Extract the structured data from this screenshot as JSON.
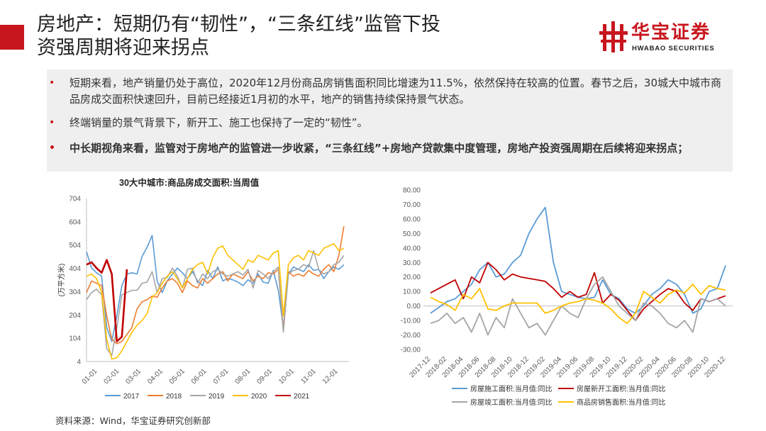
{
  "header": {
    "title_line1": "房地产：短期仍有“韧性”，“三条红线”监管下投",
    "title_line2": "资强周期将迎来拐点",
    "logo_cn": "华宝证券",
    "logo_en": "HWABAO SECURITIES",
    "accent_color": "#c8161e"
  },
  "bullets": [
    {
      "text": "短期来看，地产销量仍处于高位，2020年12月份商品房销售面积同比增速为11.5%，依然保持在较高的位置。春节之后，30城大中城市商品房成交面积快速回升，目前已经接近1月初的水平，地产的销售持续保持景气状态。",
      "bold": false
    },
    {
      "text": "终端销量的景气背景下，新开工、施工也保持了一定的“韧性”。",
      "bold": false
    },
    {
      "text": "中长期视角来看，监管对于房地产的监管进一步收紧，“三条红线”+房地产贷款集中度管理，房地产投资强周期在后续将迎来拐点；",
      "bold": true
    }
  ],
  "source": "资料来源：Wind，华宝证券研究创新部",
  "chart_data": [
    {
      "type": "line",
      "title": "30大中城市:商品房成交面积:当周值",
      "ylabel": "(万平方米)",
      "ylim": [
        4,
        704
      ],
      "yticks": [
        4,
        104,
        204,
        304,
        404,
        504,
        604,
        704
      ],
      "xticks": [
        "01-01",
        "02-01",
        "03-01",
        "04-01",
        "05-01",
        "06-01",
        "07-01",
        "08-01",
        "09-01",
        "10-01",
        "11-01",
        "12-01"
      ],
      "x_unit": "week of year (1-53)",
      "legend_position": "bottom",
      "series": [
        {
          "name": "2017",
          "color": "#5b9bd5",
          "x": [
            1,
            2,
            3,
            4,
            5,
            6,
            7,
            8,
            9,
            10,
            11,
            12,
            13,
            14,
            15,
            16,
            17,
            18,
            19,
            20,
            21,
            22,
            23,
            24,
            25,
            26,
            27,
            28,
            29,
            30,
            31,
            32,
            33,
            34,
            35,
            36,
            37,
            38,
            39,
            40,
            41,
            42,
            43,
            44,
            45,
            46,
            47,
            48,
            49,
            50,
            51,
            52
          ],
          "values": [
            475,
            405,
            385,
            370,
            150,
            90,
            200,
            330,
            380,
            385,
            380,
            455,
            495,
            545,
            350,
            300,
            350,
            380,
            405,
            385,
            360,
            390,
            350,
            330,
            395,
            360,
            410,
            350,
            360,
            355,
            345,
            330,
            355,
            340,
            380,
            345,
            340,
            395,
            310,
            150,
            380,
            410,
            400,
            390,
            420,
            395,
            400,
            360,
            390,
            410,
            400,
            420
          ]
        },
        {
          "name": "2018",
          "color": "#ed7d31",
          "x": [
            1,
            2,
            3,
            4,
            5,
            6,
            7,
            8,
            9,
            10,
            11,
            12,
            13,
            14,
            15,
            16,
            17,
            18,
            19,
            20,
            21,
            22,
            23,
            24,
            25,
            26,
            27,
            28,
            29,
            30,
            31,
            32,
            33,
            34,
            35,
            36,
            37,
            38,
            39,
            40,
            41,
            42,
            43,
            44,
            45,
            46,
            47,
            48,
            49,
            50,
            51,
            52
          ],
          "values": [
            300,
            350,
            340,
            330,
            200,
            100,
            80,
            90,
            120,
            150,
            230,
            260,
            270,
            285,
            280,
            320,
            350,
            360,
            340,
            300,
            350,
            330,
            320,
            360,
            340,
            360,
            380,
            390,
            350,
            380,
            370,
            360,
            390,
            350,
            370,
            360,
            385,
            380,
            400,
            140,
            390,
            370,
            380,
            370,
            395,
            380,
            370,
            400,
            420,
            390,
            460,
            585
          ]
        },
        {
          "name": "2019",
          "color": "#a5a5a5",
          "x": [
            1,
            2,
            3,
            4,
            5,
            6,
            7,
            8,
            9,
            10,
            11,
            12,
            13,
            14,
            15,
            16,
            17,
            18,
            19,
            20,
            21,
            22,
            23,
            24,
            25,
            26,
            27,
            28,
            29,
            30,
            31,
            32,
            33,
            34,
            35,
            36,
            37,
            38,
            39,
            40,
            41,
            42,
            43,
            44,
            45,
            46,
            47,
            48,
            49,
            50,
            51,
            52
          ],
          "values": [
            270,
            300,
            315,
            290,
            60,
            30,
            150,
            290,
            300,
            310,
            310,
            340,
            345,
            390,
            300,
            360,
            365,
            405,
            370,
            320,
            400,
            405,
            340,
            380,
            360,
            390,
            400,
            380,
            370,
            380,
            390,
            375,
            400,
            320,
            395,
            380,
            360,
            390,
            410,
            130,
            380,
            395,
            400,
            420,
            410,
            480,
            400,
            380,
            390,
            420,
            430,
            460
          ]
        },
        {
          "name": "2020",
          "color": "#ffc000",
          "x": [
            1,
            2,
            3,
            4,
            5,
            6,
            7,
            8,
            9,
            10,
            11,
            12,
            13,
            14,
            15,
            16,
            17,
            18,
            19,
            20,
            21,
            22,
            23,
            24,
            25,
            26,
            27,
            28,
            29,
            30,
            31,
            32,
            33,
            34,
            35,
            36,
            37,
            38,
            39,
            40,
            41,
            42,
            43,
            44,
            45,
            46,
            47,
            48,
            49,
            50,
            51,
            52
          ],
          "values": [
            370,
            380,
            360,
            300,
            100,
            15,
            20,
            50,
            90,
            130,
            160,
            180,
            210,
            280,
            300,
            340,
            370,
            390,
            360,
            320,
            360,
            400,
            420,
            430,
            380,
            450,
            490,
            500,
            460,
            440,
            420,
            400,
            440,
            430,
            460,
            450,
            440,
            470,
            480,
            200,
            420,
            450,
            460,
            440,
            480,
            470,
            460,
            490,
            500,
            510,
            480,
            490
          ]
        },
        {
          "name": "2021",
          "color": "#c00000",
          "x": [
            1,
            2,
            3,
            4,
            5,
            6,
            7,
            8,
            9
          ],
          "values": [
            420,
            430,
            405,
            385,
            440,
            380,
            90,
            110,
            400
          ]
        }
      ]
    },
    {
      "type": "line",
      "ylim": [
        -30,
        80
      ],
      "yticks": [
        -30,
        -20,
        -10,
        0,
        10,
        20,
        30,
        40,
        50,
        60,
        70,
        80
      ],
      "xticks": [
        "2017-12",
        "2018-02",
        "2018-04",
        "2018-06",
        "2018-08",
        "2018-10",
        "2018-12",
        "2019-02",
        "2019-04",
        "2019-06",
        "2019-08",
        "2019-10",
        "2019-12",
        "2020-02",
        "2020-04",
        "2020-06",
        "2020-08",
        "2020-10",
        "2020-12"
      ],
      "x_unit": "month (index 0 = 2017-12, index 36 = 2020-12)",
      "legend_position": "bottom",
      "series": [
        {
          "name": "房屋施工面积:当月值:同比",
          "color": "#5b9bd5",
          "x": [
            0,
            2,
            3,
            4,
            5,
            6,
            7,
            8,
            9,
            10,
            11,
            12,
            13,
            14,
            15,
            16,
            17,
            18,
            19,
            20,
            21,
            22,
            23,
            24,
            25,
            26,
            27,
            28,
            29,
            30,
            31,
            32,
            33,
            34,
            35,
            36
          ],
          "values": [
            -5,
            3,
            5,
            10,
            15,
            25,
            30,
            20,
            22,
            30,
            35,
            50,
            60,
            68,
            30,
            10,
            8,
            6,
            5,
            6,
            18,
            8,
            5,
            -2,
            -5,
            0,
            8,
            12,
            18,
            15,
            8,
            -5,
            -2,
            10,
            12,
            28
          ]
        },
        {
          "name": "房屋新开工面积:当月值:同比",
          "color": "#c00000",
          "x": [
            0,
            3,
            4,
            5,
            6,
            7,
            8,
            9,
            10,
            11,
            12,
            13,
            14,
            15,
            16,
            17,
            18,
            19,
            20,
            21,
            22,
            23,
            24,
            25,
            26,
            27,
            28,
            29,
            30,
            31,
            32,
            33,
            34,
            35,
            36
          ],
          "values": [
            9,
            18,
            5,
            20,
            16,
            30,
            25,
            18,
            22,
            20,
            19,
            18,
            17,
            12,
            6,
            10,
            6,
            8,
            23,
            2,
            8,
            4,
            -3,
            -10,
            -2,
            3,
            8,
            12,
            10,
            2,
            -3,
            5,
            3,
            5,
            7
          ]
        },
        {
          "name": "房屋竣工面积:当月值:同比",
          "color": "#a5a5a5",
          "x": [
            0,
            1,
            2,
            3,
            4,
            5,
            6,
            7,
            8,
            9,
            10,
            11,
            12,
            13,
            14,
            15,
            16,
            17,
            18,
            19,
            20,
            21,
            22,
            23,
            24,
            25,
            26,
            27,
            28,
            29,
            30,
            31,
            32,
            33,
            34,
            35,
            36
          ],
          "values": [
            -12,
            -10,
            -5,
            -12,
            -8,
            -18,
            -5,
            -20,
            -8,
            -15,
            5,
            -5,
            -15,
            -12,
            -20,
            -10,
            0,
            -5,
            -8,
            5,
            15,
            20,
            10,
            0,
            -5,
            -10,
            2,
            0,
            -5,
            -12,
            -15,
            -10,
            -18,
            5,
            3,
            5,
            0
          ]
        },
        {
          "name": "商品房销售面积:当月值:同比",
          "color": "#ffc000",
          "x": [
            0,
            1,
            2,
            3,
            4,
            5,
            6,
            7,
            8,
            9,
            10,
            11,
            12,
            13,
            14,
            15,
            16,
            17,
            18,
            19,
            20,
            21,
            22,
            23,
            24,
            25,
            26,
            27,
            28,
            29,
            30,
            31,
            32,
            33,
            34,
            35,
            36
          ],
          "values": [
            6,
            3,
            1,
            -3,
            8,
            5,
            12,
            -2,
            -3,
            0,
            2,
            2,
            2,
            2,
            -5,
            -3,
            0,
            2,
            3,
            5,
            4,
            2,
            -2,
            -8,
            -12,
            -5,
            10,
            6,
            2,
            8,
            11,
            9,
            15,
            8,
            14,
            12,
            11
          ]
        }
      ]
    }
  ]
}
